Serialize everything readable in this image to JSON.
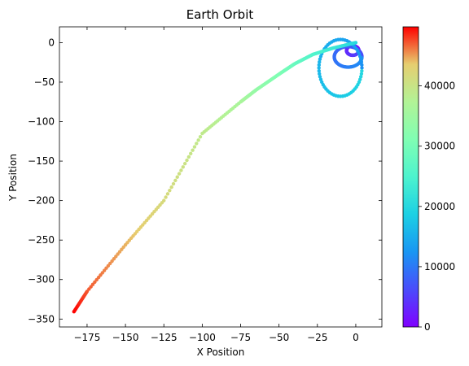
{
  "chart_data": {
    "type": "scatter",
    "title": "Earth Orbit",
    "xlabel": "X Position",
    "ylabel": "Y Position",
    "xlim": [
      -193,
      17
    ],
    "ylim": [
      -360,
      20
    ],
    "x_ticks": [
      -175,
      -150,
      -125,
      -100,
      -75,
      -50,
      -25,
      0
    ],
    "y_ticks": [
      -350,
      -300,
      -250,
      -200,
      -150,
      -100,
      -50,
      0
    ],
    "grid": false,
    "colormap": "rainbow",
    "colorbar": {
      "range": [
        0,
        49800
      ],
      "ticks": [
        0,
        10000,
        20000,
        30000,
        40000
      ]
    },
    "trajectory": {
      "description_points": [
        {
          "t": 0,
          "x": 0,
          "y": -8
        },
        {
          "t": 49800,
          "x": -184,
          "y": -342
        }
      ],
      "spiral_turns": [
        {
          "t_start": 0,
          "t_end": 6000,
          "cx": -2,
          "cy": -10,
          "rx": 4,
          "ry": 6
        },
        {
          "t_start": 6000,
          "t_end": 12000,
          "cx": -5,
          "cy": -18,
          "rx": 9,
          "ry": 13
        },
        {
          "t_start": 12000,
          "t_end": 20000,
          "cx": -10,
          "cy": -32,
          "rx": 14,
          "ry": 36
        }
      ],
      "tail_curve": [
        {
          "x": 0,
          "y": 0
        },
        {
          "x": -15,
          "y": -7
        },
        {
          "x": -28,
          "y": -15
        },
        {
          "x": -40,
          "y": -27
        },
        {
          "x": -50,
          "y": -40
        },
        {
          "x": -65,
          "y": -60
        },
        {
          "x": -75,
          "y": -75
        },
        {
          "x": -100,
          "y": -115
        },
        {
          "x": -125,
          "y": -200
        },
        {
          "x": -150,
          "y": -256
        },
        {
          "x": -175,
          "y": -315
        },
        {
          "x": -184,
          "y": -342
        }
      ]
    }
  }
}
